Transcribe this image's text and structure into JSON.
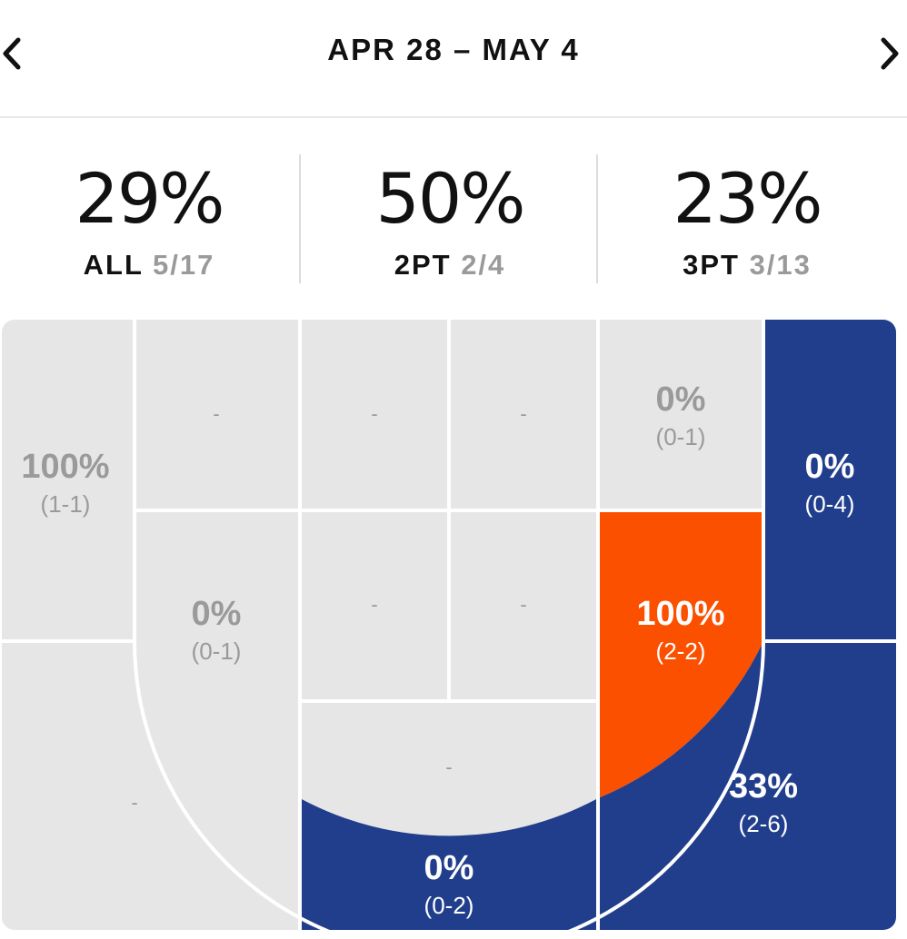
{
  "header": {
    "date_range": "APR 28 – MAY 4",
    "prev_icon": "chevron-left-icon",
    "next_icon": "chevron-right-icon"
  },
  "summary": {
    "all": {
      "pct": "29%",
      "label": "ALL",
      "fraction": "5/17"
    },
    "two_pt": {
      "pct": "50%",
      "label": "2PT",
      "fraction": "2/4"
    },
    "three_pt": {
      "pct": "23%",
      "label": "3PT",
      "fraction": "3/13"
    }
  },
  "colors": {
    "zone_empty": "#e6e6e6",
    "zone_cold": "#213e8c",
    "zone_hot": "#fb5000",
    "text_muted": "#9a9a9a",
    "court_lines": "#ffffff"
  },
  "zones": {
    "left_corner_three": {
      "pct": "100%",
      "record": "(1-1)",
      "made": 1,
      "attempts": 1
    },
    "left_baseline_mid": {
      "pct": "",
      "record": "-",
      "made": 0,
      "attempts": 0
    },
    "paint_left_upper": {
      "pct": "",
      "record": "-",
      "made": 0,
      "attempts": 0
    },
    "paint_right_upper": {
      "pct": "",
      "record": "-",
      "made": 0,
      "attempts": 0
    },
    "right_baseline_mid": {
      "pct": "0%",
      "record": "(0-1)",
      "made": 0,
      "attempts": 1
    },
    "right_corner_three": {
      "pct": "0%",
      "record": "(0-4)",
      "made": 0,
      "attempts": 4
    },
    "left_wing_mid": {
      "pct": "0%",
      "record": "(0-1)",
      "made": 0,
      "attempts": 1
    },
    "paint_left_lower": {
      "pct": "",
      "record": "-",
      "made": 0,
      "attempts": 0
    },
    "paint_right_lower": {
      "pct": "",
      "record": "-",
      "made": 0,
      "attempts": 0
    },
    "right_wing_mid": {
      "pct": "100%",
      "record": "(2-2)",
      "made": 2,
      "attempts": 2
    },
    "top_key_mid": {
      "pct": "",
      "record": "-",
      "made": 0,
      "attempts": 0
    },
    "left_wing_three": {
      "pct": "",
      "record": "-",
      "made": 0,
      "attempts": 0
    },
    "top_key_three": {
      "pct": "0%",
      "record": "(0-2)",
      "made": 0,
      "attempts": 2
    },
    "right_wing_three": {
      "pct": "33%",
      "record": "(2-6)",
      "made": 2,
      "attempts": 6
    }
  }
}
